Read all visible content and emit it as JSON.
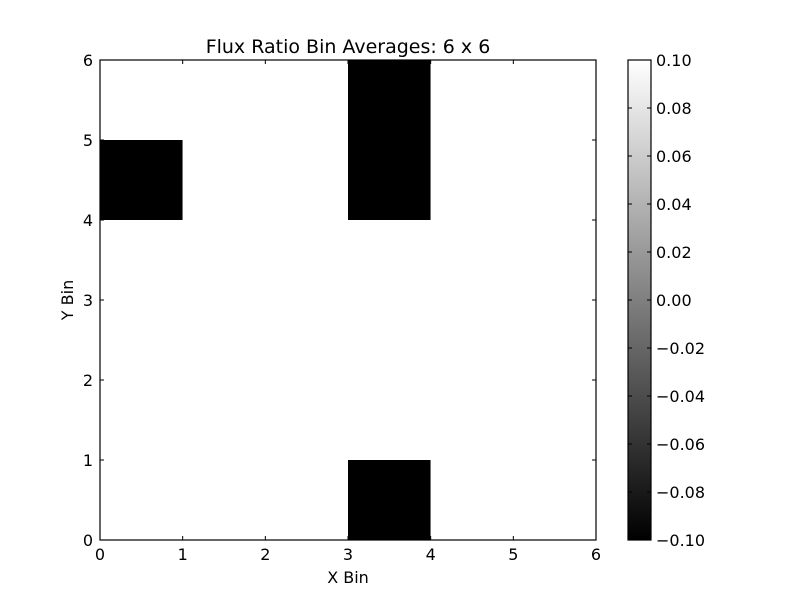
{
  "chart_data": {
    "type": "heatmap",
    "title": "Flux Ratio Bin Averages: 6 x 6",
    "xlabel": "X Bin",
    "ylabel": "Y Bin",
    "xlim": [
      0,
      6
    ],
    "ylim": [
      0,
      6
    ],
    "x_ticks": [
      "0",
      "1",
      "2",
      "3",
      "4",
      "5",
      "6"
    ],
    "y_ticks": [
      "0",
      "1",
      "2",
      "3",
      "4",
      "5",
      "6"
    ],
    "grid": false,
    "z": [
      [
        0.1,
        0.1,
        0.1,
        -0.1,
        0.1,
        0.1
      ],
      [
        0.1,
        0.1,
        0.1,
        0.1,
        0.1,
        0.1
      ],
      [
        0.1,
        0.1,
        0.1,
        0.1,
        0.1,
        0.1
      ],
      [
        0.1,
        0.1,
        0.1,
        0.1,
        0.1,
        0.1
      ],
      [
        -0.1,
        0.1,
        0.1,
        -0.1,
        0.1,
        0.1
      ],
      [
        0.1,
        0.1,
        0.1,
        -0.1,
        0.1,
        0.1
      ]
    ],
    "z_row_order": "row index 0 = y bin 0..1 (bottom)",
    "colorbar": {
      "vmin": -0.1,
      "vmax": 0.1,
      "colormap": "gray",
      "low_color": "#000000",
      "high_color": "#ffffff",
      "ticks": [
        "0.10",
        "0.08",
        "0.06",
        "0.04",
        "0.02",
        "0.00",
        "−0.02",
        "−0.04",
        "−0.06",
        "−0.08",
        "−0.10"
      ]
    }
  }
}
